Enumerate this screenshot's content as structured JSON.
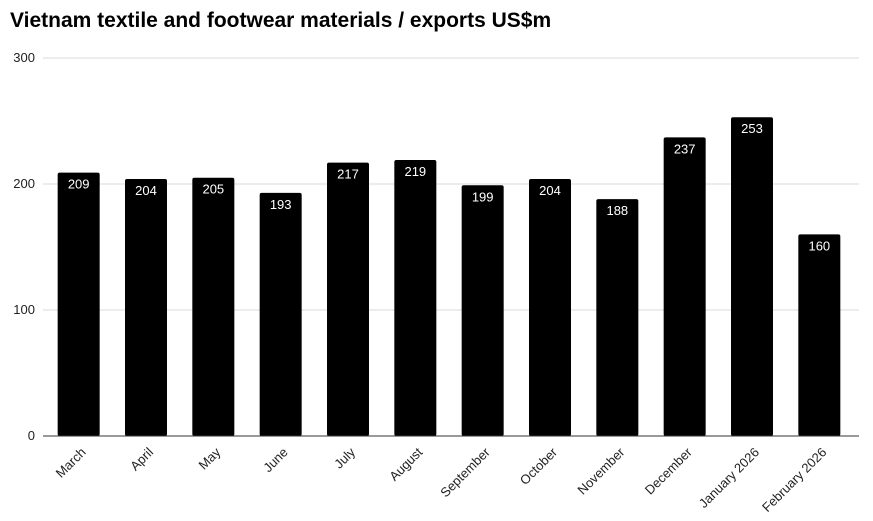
{
  "chart_data": {
    "type": "bar",
    "title": "Vietnam textile and footwear materials / exports US$m",
    "categories": [
      "March",
      "April",
      "May",
      "June",
      "July",
      "August",
      "September",
      "October",
      "November",
      "December",
      "January 2026",
      "February 2026"
    ],
    "values": [
      209,
      204,
      205,
      193,
      217,
      219,
      199,
      204,
      188,
      237,
      253,
      160
    ],
    "xlabel": "",
    "ylabel": "",
    "ylim": [
      0,
      300
    ],
    "yticks": [
      0,
      100,
      200,
      300
    ],
    "grid": true,
    "legend": "none",
    "bar_color": "#000000",
    "data_label_color": "#ffffff",
    "grid_color": "#d9d9d9"
  }
}
